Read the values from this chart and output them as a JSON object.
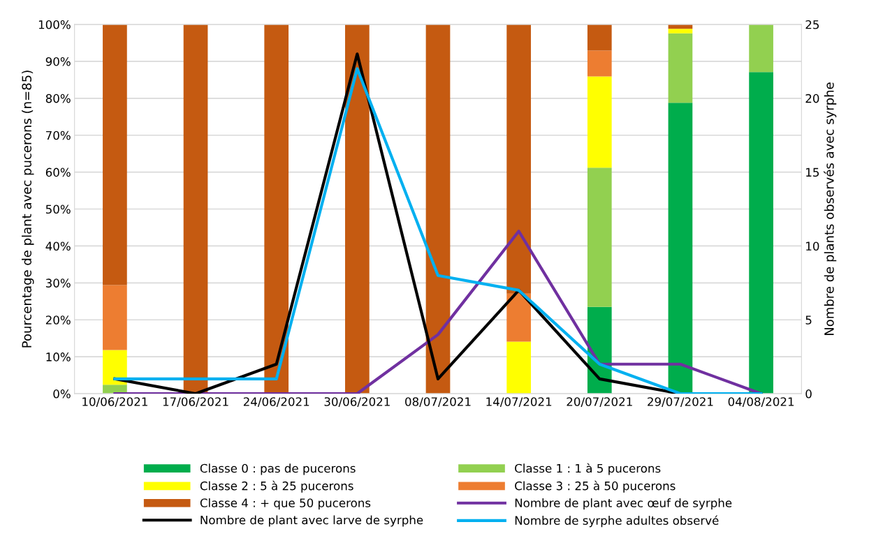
{
  "chart_data": {
    "type": "bar",
    "stacked": true,
    "ylabel": "Pourcentage de plant avec pucerons (n=85)",
    "y2label": "Nombre de plants observés avec syrphe",
    "categories": [
      "10/06/2021",
      "17/06/2021",
      "24/06/2021",
      "30/06/2021",
      "08/07/2021",
      "14/07/2021",
      "20/07/2021",
      "29/07/2021",
      "04/08/2021"
    ],
    "ylim": [
      0,
      100
    ],
    "yticks": [
      {
        "value": 0,
        "label": "0%"
      },
      {
        "value": 10,
        "label": "10%"
      },
      {
        "value": 20,
        "label": "20%"
      },
      {
        "value": 30,
        "label": "30%"
      },
      {
        "value": 40,
        "label": "40%"
      },
      {
        "value": 50,
        "label": "50%"
      },
      {
        "value": 60,
        "label": "60%"
      },
      {
        "value": 70,
        "label": "70%"
      },
      {
        "value": 80,
        "label": "80%"
      },
      {
        "value": 90,
        "label": "90%"
      },
      {
        "value": 100,
        "label": "100%"
      }
    ],
    "y2lim": [
      0,
      25
    ],
    "y2ticks": [
      0,
      5,
      10,
      15,
      20,
      25
    ],
    "grid": "y",
    "legend": "bottom",
    "series": [
      {
        "name": "Classe 0 : pas de pucerons",
        "color": "#00ad4c",
        "values": [
          0,
          0,
          0,
          0,
          0,
          0,
          23.5,
          78.8,
          87.1
        ]
      },
      {
        "name": "Classe 1 : 1 à 5 pucerons",
        "color": "#92d050",
        "values": [
          2.4,
          0,
          0,
          0,
          0,
          0,
          37.7,
          18.8,
          12.9
        ]
      },
      {
        "name": "Classe 2 : 5 à 25 pucerons",
        "color": "#ffff00",
        "values": [
          9.4,
          0,
          0,
          0,
          0,
          14.1,
          24.7,
          1.2,
          0
        ]
      },
      {
        "name": "Classe 3 : 25 à 50 pucerons",
        "color": "#ed7d31",
        "values": [
          17.6,
          0,
          0,
          0,
          0,
          13,
          7,
          0,
          0
        ]
      },
      {
        "name": "Classe 4 : + que 50 pucerons",
        "color": "#c55a11",
        "values": [
          70.6,
          100,
          100,
          100,
          100,
          72.9,
          7.1,
          1.2,
          0
        ]
      },
      {
        "name": "Nombre de plant avec œuf de syrphe",
        "type": "line",
        "axis": "y2",
        "color": "#7030a0",
        "values": [
          0,
          0,
          0,
          0,
          4,
          11,
          2,
          2,
          0
        ]
      },
      {
        "name": "Nombre de plant avec larve de syrphe",
        "type": "line",
        "axis": "y2",
        "color": "#000000",
        "values": [
          1,
          0,
          2,
          23,
          1,
          7,
          1,
          0,
          0
        ]
      },
      {
        "name": "Nombre de syrphe adultes observé",
        "type": "line",
        "axis": "y2",
        "color": "#00b0f0",
        "values": [
          1,
          1,
          1,
          22,
          8,
          7,
          2,
          0,
          0
        ]
      }
    ]
  }
}
